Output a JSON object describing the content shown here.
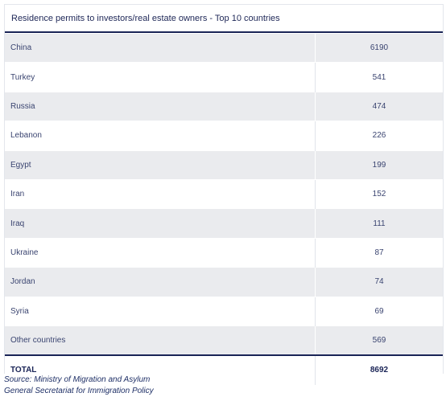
{
  "table": {
    "title": "Residence permits to investors/real estate owners - Top 10 countries",
    "rows": [
      {
        "country": "China",
        "value": "6190"
      },
      {
        "country": "Turkey",
        "value": "541"
      },
      {
        "country": "Russia",
        "value": "474"
      },
      {
        "country": "Lebanon",
        "value": "226"
      },
      {
        "country": "Egypt",
        "value": "199"
      },
      {
        "country": "Iran",
        "value": "152"
      },
      {
        "country": "Iraq",
        "value": "111"
      },
      {
        "country": "Ukraine",
        "value": "87"
      },
      {
        "country": "Jordan",
        "value": "74"
      },
      {
        "country": "Syria",
        "value": "69"
      },
      {
        "country": "Other countries",
        "value": "569"
      }
    ],
    "total": {
      "label": "TOTAL",
      "value": "8692"
    }
  },
  "source": {
    "line1": "Source: Ministry of Migration and Asylum",
    "line2": "General Secretariat for Immigration Policy"
  },
  "colors": {
    "header_text": "#1e2757",
    "rule": "#1a2456",
    "stripe": "#eaebee"
  }
}
